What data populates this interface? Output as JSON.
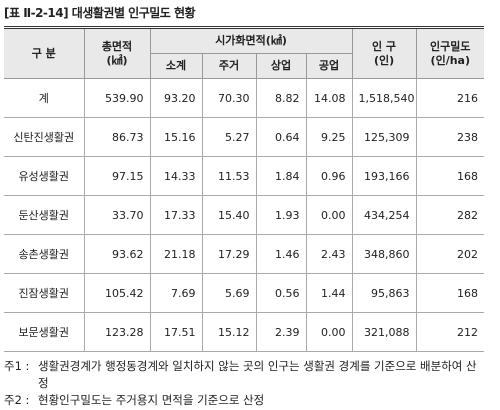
{
  "title": "[표 Ⅱ-2-14] 대생활권별 인구밀도 현황",
  "header": {
    "division": "구 분",
    "total_area": [
      "총면적",
      "(㎢)"
    ],
    "urban_area": "시가화면적(㎢)",
    "urban_sub": [
      "소계",
      "주거",
      "상업",
      "공업"
    ],
    "population": [
      "인 구",
      "(인)"
    ],
    "density": [
      "인구밀도",
      "(인/ha)"
    ]
  },
  "rows": [
    [
      "계",
      "539.90",
      "93.20",
      "70.30",
      "8.82",
      "14.08",
      "1,518,540",
      "216"
    ],
    [
      "신탄진생활권",
      "86.73",
      "15.16",
      "5.27",
      "0.64",
      "9.25",
      "125,309",
      "238"
    ],
    [
      "유성생활권",
      "97.15",
      "14.33",
      "11.53",
      "1.84",
      "0.96",
      "193,166",
      "168"
    ],
    [
      "둔산생활권",
      "33.70",
      "17.33",
      "15.40",
      "1.93",
      "0.00",
      "434,254",
      "282"
    ],
    [
      "송촌생활권",
      "93.62",
      "21.18",
      "17.29",
      "1.46",
      "2.43",
      "348,860",
      "202"
    ],
    [
      "진잠생활권",
      "105.42",
      "7.69",
      "5.69",
      "0.56",
      "1.44",
      "95,863",
      "168"
    ],
    [
      "보문생활권",
      "123.28",
      "17.51",
      "15.12",
      "2.39",
      "0.00",
      "321,088",
      "212"
    ]
  ],
  "notes": [
    {
      "label": "주1 :",
      "text": "생활권경계가 행정동경계와 일치하지 않는 곳의 인구는 생활권 경계를 기준으로 배분하여 산정"
    },
    {
      "label": "주2 :",
      "text": "현황인구밀도는 주거용지 면적을 기준으로 산정"
    }
  ]
}
